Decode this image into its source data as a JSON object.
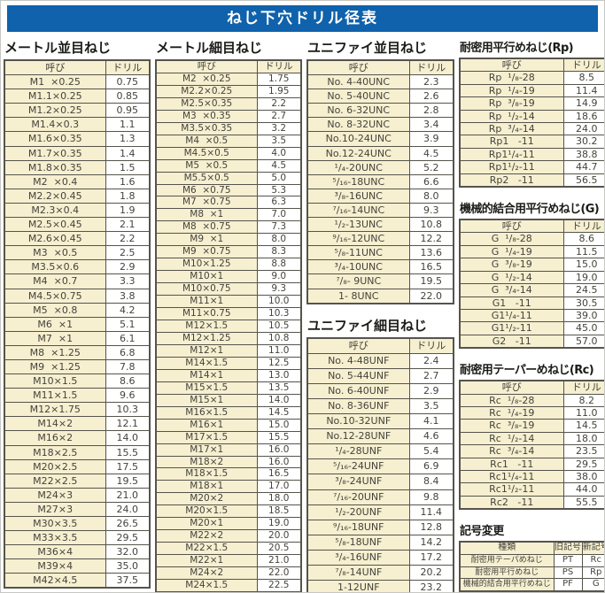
{
  "page": {
    "title": "ねじ下穴ドリル径表"
  },
  "colors": {
    "accent_blue": "#0f62ab",
    "cell_cream": "#f6efd0",
    "table_border": "#55544c"
  },
  "tables": {
    "metric_coarse": {
      "heading": "メートル並目ねじ",
      "columns": [
        "呼び",
        "ドリル"
      ],
      "rows": [
        [
          "M1  ×0.25",
          "0.75"
        ],
        [
          "M1.1×0.25",
          "0.85"
        ],
        [
          "M1.2×0.25",
          "0.95"
        ],
        [
          "M1.4×0.3",
          "1.1"
        ],
        [
          "M1.6×0.35",
          "1.3"
        ],
        [
          "M1.7×0.35",
          "1.4"
        ],
        [
          "M1.8×0.35",
          "1.5"
        ],
        [
          "M2  ×0.4",
          "1.6"
        ],
        [
          "M2.2×0.45",
          "1.8"
        ],
        [
          "M2.3×0.4",
          "1.9"
        ],
        [
          "M2.5×0.45",
          "2.1"
        ],
        [
          "M2.6×0.45",
          "2.2"
        ],
        [
          "M3  ×0.5",
          "2.5"
        ],
        [
          "M3.5×0.6",
          "2.9"
        ],
        [
          "M4  ×0.7",
          "3.3"
        ],
        [
          "M4.5×0.75",
          "3.8"
        ],
        [
          "M5  ×0.8",
          "4.2"
        ],
        [
          "M6  ×1",
          "5.1"
        ],
        [
          "M7  ×1",
          "6.1"
        ],
        [
          "M8  ×1.25",
          "6.8"
        ],
        [
          "M9  ×1.25",
          "7.8"
        ],
        [
          "M10×1.5",
          "8.6"
        ],
        [
          "M11×1.5",
          "9.6"
        ],
        [
          "M12×1.75",
          "10.3"
        ],
        [
          "M14×2",
          "12.1"
        ],
        [
          "M16×2",
          "14.0"
        ],
        [
          "M18×2.5",
          "15.5"
        ],
        [
          "M20×2.5",
          "17.5"
        ],
        [
          "M22×2.5",
          "19.5"
        ],
        [
          "M24×3",
          "21.0"
        ],
        [
          "M27×3",
          "24.0"
        ],
        [
          "M30×3.5",
          "26.5"
        ],
        [
          "M33×3.5",
          "29.5"
        ],
        [
          "M36×4",
          "32.0"
        ],
        [
          "M39×4",
          "35.0"
        ],
        [
          "M42×4.5",
          "37.5"
        ]
      ]
    },
    "metric_fine": {
      "heading": "メートル細目ねじ",
      "columns": [
        "呼び",
        "ドリル"
      ],
      "rows": [
        [
          "M2  ×0.25",
          "1.75"
        ],
        [
          "M2.2×0.25",
          "1.95"
        ],
        [
          "M2.5×0.35",
          "2.2"
        ],
        [
          "M3  ×0.35",
          "2.7"
        ],
        [
          "M3.5×0.35",
          "3.2"
        ],
        [
          "M4  ×0.5",
          "3.5"
        ],
        [
          "M4.5×0.5",
          "4.0"
        ],
        [
          "M5  ×0.5",
          "4.5"
        ],
        [
          "M5.5×0.5",
          "5.0"
        ],
        [
          "M6  ×0.75",
          "5.3"
        ],
        [
          "M7  ×0.75",
          "6.3"
        ],
        [
          "M8  ×1",
          "7.0"
        ],
        [
          "M8  ×0.75",
          "7.3"
        ],
        [
          "M9  ×1",
          "8.0"
        ],
        [
          "M9  ×0.75",
          "8.3"
        ],
        [
          "M10×1.25",
          "8.8"
        ],
        [
          "M10×1",
          "9.0"
        ],
        [
          "M10×0.75",
          "9.3"
        ],
        [
          "M11×1",
          "10.0"
        ],
        [
          "M11×0.75",
          "10.3"
        ],
        [
          "M12×1.5",
          "10.5"
        ],
        [
          "M12×1.25",
          "10.8"
        ],
        [
          "M12×1",
          "11.0"
        ],
        [
          "M14×1.5",
          "12.5"
        ],
        [
          "M14×1",
          "13.0"
        ],
        [
          "M15×1.5",
          "13.5"
        ],
        [
          "M15×1",
          "14.0"
        ],
        [
          "M16×1.5",
          "14.5"
        ],
        [
          "M16×1",
          "15.0"
        ],
        [
          "M17×1.5",
          "15.5"
        ],
        [
          "M17×1",
          "16.0"
        ],
        [
          "M18×2",
          "16.0"
        ],
        [
          "M18×1.5",
          "16.5"
        ],
        [
          "M18×1",
          "17.0"
        ],
        [
          "M20×2",
          "18.0"
        ],
        [
          "M20×1.5",
          "18.5"
        ],
        [
          "M20×1",
          "19.0"
        ],
        [
          "M22×2",
          "20.0"
        ],
        [
          "M22×1.5",
          "20.5"
        ],
        [
          "M22×1",
          "21.0"
        ],
        [
          "M24×2",
          "22.0"
        ],
        [
          "M24×1.5",
          "22.5"
        ]
      ]
    },
    "unified_coarse": {
      "heading": "ユニファイ並目ねじ",
      "columns": [
        "呼び",
        "ドリル"
      ],
      "rows": [
        [
          "No. 4-40UNC",
          "2.3"
        ],
        [
          "No. 5-40UNC",
          "2.6"
        ],
        [
          "No. 6-32UNC",
          "2.8"
        ],
        [
          "No. 8-32UNC",
          "3.4"
        ],
        [
          "No.10-24UNC",
          "3.9"
        ],
        [
          "No.12-24UNC",
          "4.5"
        ],
        [
          "¹/₄-20UNC",
          "5.2"
        ],
        [
          "⁵/₁₆-18UNC",
          "6.6"
        ],
        [
          "³/₈-16UNC",
          "8.0"
        ],
        [
          "⁷/₁₆-14UNC",
          "9.3"
        ],
        [
          "¹/₂-13UNC",
          "10.8"
        ],
        [
          "⁹/₁₆-12UNC",
          "12.2"
        ],
        [
          "⁵/₈-11UNC",
          "13.6"
        ],
        [
          "³/₄-10UNC",
          "16.5"
        ],
        [
          "⁷/₈- 9UNC",
          "19.5"
        ],
        [
          "1- 8UNC",
          "22.0"
        ]
      ]
    },
    "unified_fine": {
      "heading": "ユニファイ細目ねじ",
      "columns": [
        "呼び",
        "ドリル"
      ],
      "rows": [
        [
          "No. 4-48UNF",
          "2.4"
        ],
        [
          "No. 5-44UNF",
          "2.7"
        ],
        [
          "No. 6-40UNF",
          "2.9"
        ],
        [
          "No. 8-36UNF",
          "3.5"
        ],
        [
          "No.10-32UNF",
          "4.1"
        ],
        [
          "No.12-28UNF",
          "4.6"
        ],
        [
          "¹/₄-28UNF",
          "5.4"
        ],
        [
          "⁵/₁₆-24UNF",
          "6.9"
        ],
        [
          "³/₈-24UNF",
          "8.4"
        ],
        [
          "⁷/₁₆-20UNF",
          "9.8"
        ],
        [
          "¹/₂-20UNF",
          "11.4"
        ],
        [
          "⁹/₁₆-18UNF",
          "12.8"
        ],
        [
          "⁵/₈-18UNF",
          "14.2"
        ],
        [
          "³/₄-16UNF",
          "17.2"
        ],
        [
          "⁷/₈-14UNF",
          "20.2"
        ],
        [
          "1-12UNF",
          "23.2"
        ]
      ]
    },
    "rp": {
      "heading": "耐密用平行めねじ(Rp)",
      "columns": [
        "呼び",
        "ドリル"
      ],
      "rows": [
        [
          "Rp  ¹/₈-28",
          "8.5"
        ],
        [
          "Rp  ¹/₄-19",
          "11.4"
        ],
        [
          "Rp  ³/₈-19",
          "14.9"
        ],
        [
          "Rp  ¹/₂-14",
          "18.6"
        ],
        [
          "Rp  ³/₄-14",
          "24.0"
        ],
        [
          "Rp1   -11",
          "30.2"
        ],
        [
          "Rp1¹/₄-11",
          "38.8"
        ],
        [
          "Rp1¹/₂-11",
          "44.7"
        ],
        [
          "Rp2   -11",
          "56.5"
        ]
      ]
    },
    "g": {
      "heading": "機械的結合用平行めねじ(G)",
      "columns": [
        "呼び",
        "ドリル"
      ],
      "rows": [
        [
          "G  ¹/₈-28",
          "8.6"
        ],
        [
          "G  ¹/₄-19",
          "11.5"
        ],
        [
          "G  ³/₈-19",
          "15.0"
        ],
        [
          "G  ¹/₂-14",
          "19.0"
        ],
        [
          "G  ³/₄-14",
          "24.5"
        ],
        [
          "G1   -11",
          "30.5"
        ],
        [
          "G1¹/₄-11",
          "39.0"
        ],
        [
          "G1¹/₂-11",
          "45.0"
        ],
        [
          "G2   -11",
          "57.0"
        ]
      ]
    },
    "rc": {
      "heading": "耐密用テーパーめねじ(Rc)",
      "columns": [
        "呼び",
        "ドリル"
      ],
      "rows": [
        [
          "Rc  ¹/₈-28",
          "8.2"
        ],
        [
          "Rc  ¹/₄-19",
          "11.0"
        ],
        [
          "Rc  ³/₈-19",
          "14.5"
        ],
        [
          "Rc  ¹/₂-14",
          "18.0"
        ],
        [
          "Rc  ³/₄-14",
          "23.5"
        ],
        [
          "Rc1   -11",
          "29.5"
        ],
        [
          "Rc1¹/₄-11",
          "38.0"
        ],
        [
          "Rc1¹/₂-11",
          "44.0"
        ],
        [
          "Rc2   -11",
          "55.5"
        ]
      ]
    },
    "symbol_change": {
      "heading": "記号変更",
      "columns": [
        "種類",
        "旧記号",
        "新記号"
      ],
      "rows": [
        [
          "耐密用テーパめねじ",
          "PT",
          "Rc"
        ],
        [
          "耐密用平行めねじ",
          "PS",
          "Rp"
        ],
        [
          "機械的結合用平行めねじ",
          "PF",
          "G"
        ]
      ]
    }
  }
}
